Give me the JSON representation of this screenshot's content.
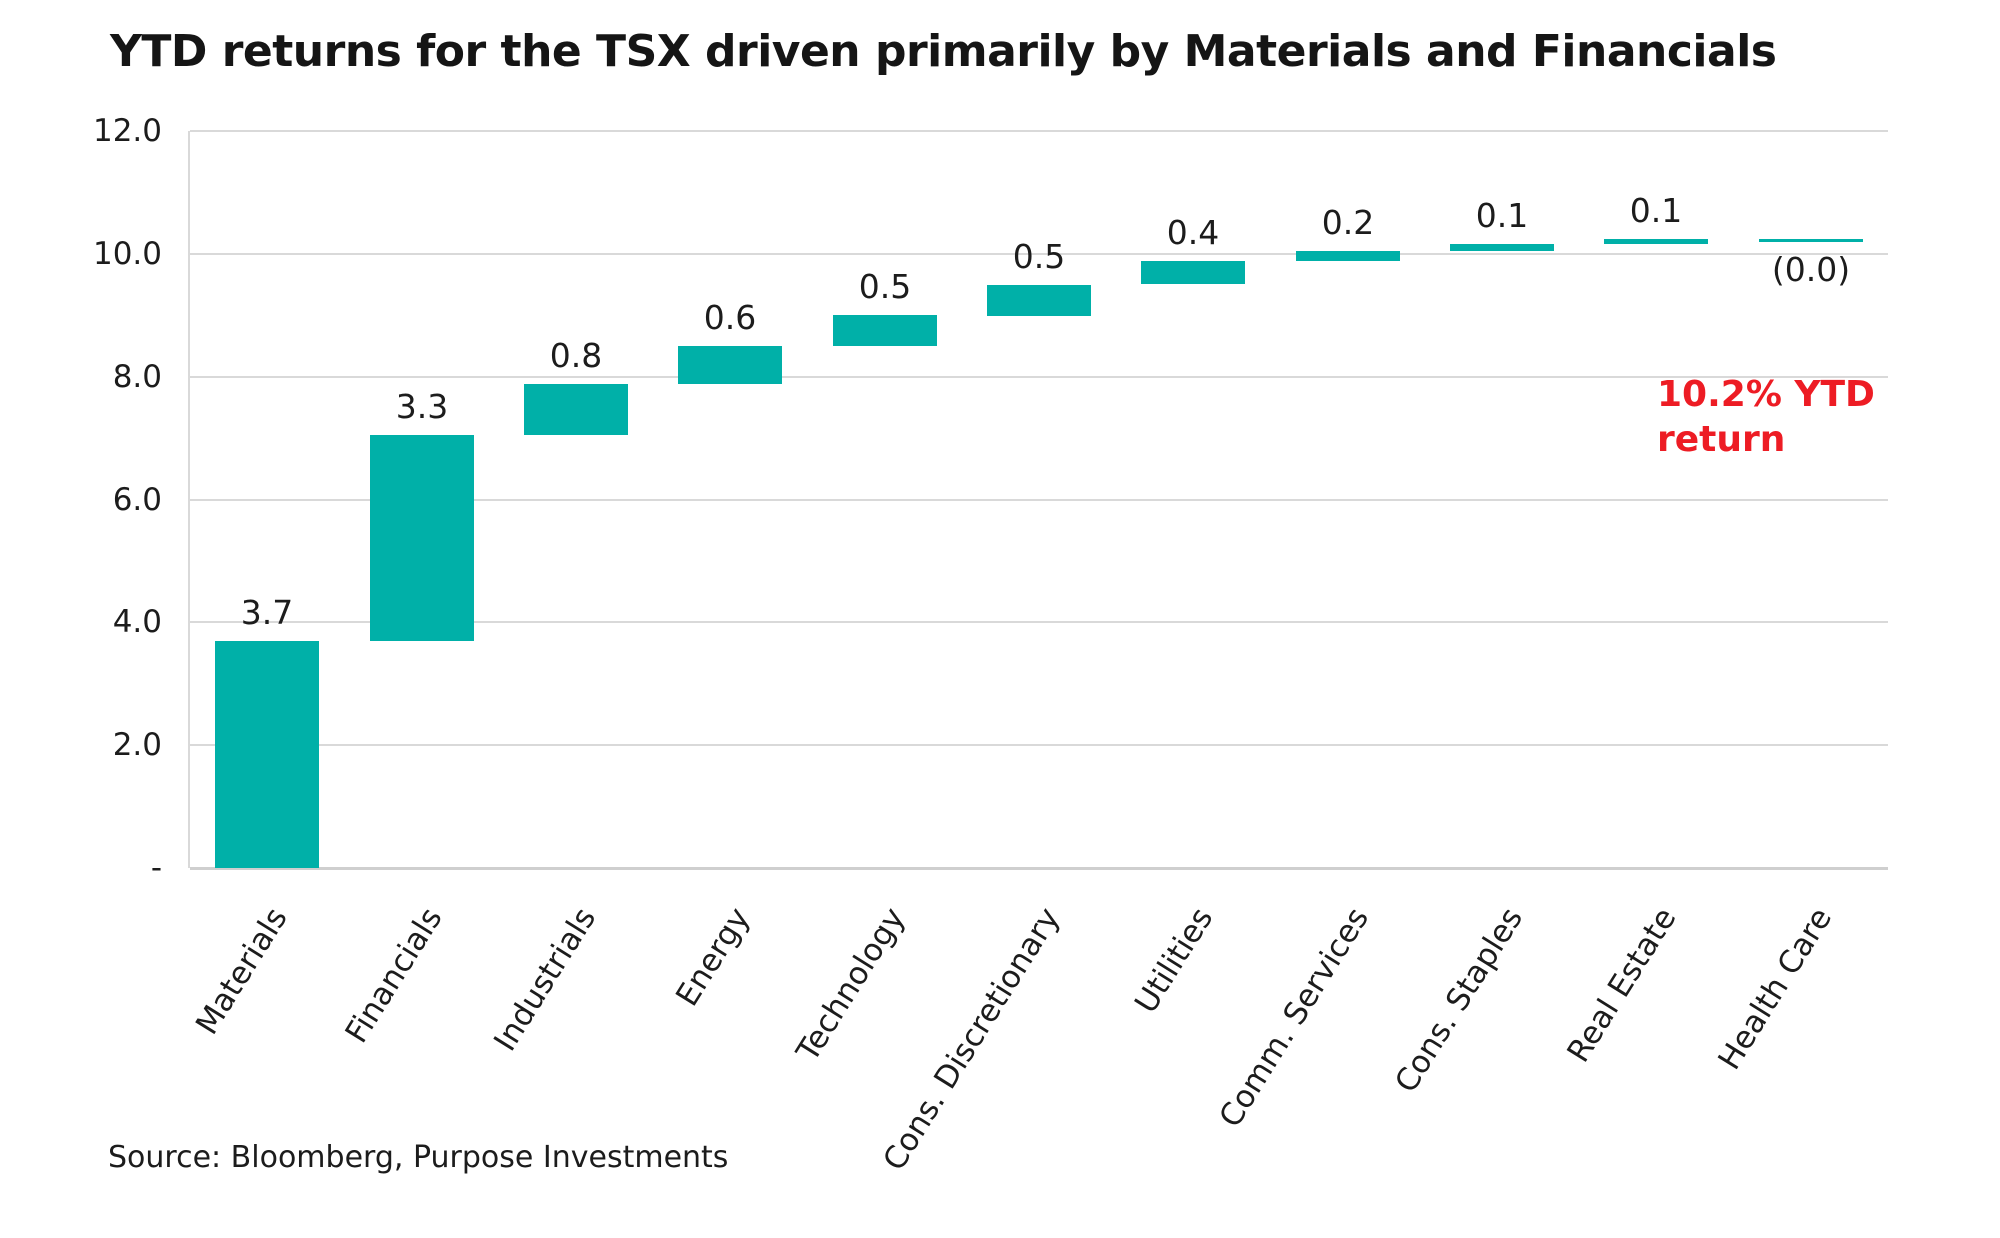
{
  "title": "YTD returns for the TSX driven primarily by Materials and Financials",
  "source": "Source: Bloomberg, Purpose Investments",
  "annotation": {
    "line1": "10.2% YTD",
    "line2": "return"
  },
  "colors": {
    "bar": "#00B0A8",
    "annotation_red": "#ED1C24",
    "gridline": "#D9D9D9",
    "text": "#1C1C1C"
  },
  "chart_data": {
    "type": "bar",
    "subtype": "waterfall",
    "title": "YTD returns for the TSX driven primarily by Materials and Financials",
    "xlabel": "",
    "ylabel": "",
    "ylim": [
      0,
      12
    ],
    "grid": true,
    "legend": false,
    "total_annotation": "10.2% YTD return",
    "categories": [
      "Materials",
      "Financials",
      "Industrials",
      "Energy",
      "Technology",
      "Cons. Discretionary",
      "Utilities",
      "Comm. Services",
      "Cons. Staples",
      "Real Estate",
      "Health Care"
    ],
    "values": [
      3.7,
      3.3,
      0.8,
      0.6,
      0.5,
      0.5,
      0.4,
      0.2,
      0.1,
      0.1,
      -0.0
    ],
    "yticks": [
      {
        "value": 12,
        "label": "12.0"
      },
      {
        "value": 10,
        "label": "10.0"
      },
      {
        "value": 8,
        "label": "8.0"
      },
      {
        "value": 6,
        "label": "6.0"
      },
      {
        "value": 4,
        "label": "4.0"
      },
      {
        "value": 2,
        "label": "2.0"
      },
      {
        "value": 0,
        "label": "-"
      }
    ],
    "items": [
      {
        "category": "Materials",
        "value": 3.7,
        "label": "3.7",
        "start": 0,
        "end": 3.7,
        "label_below": false
      },
      {
        "category": "Financials",
        "value": 3.3,
        "label": "3.3",
        "start": 3.7,
        "end": 7.05,
        "label_below": false
      },
      {
        "category": "Industrials",
        "value": 0.8,
        "label": "0.8",
        "start": 7.05,
        "end": 7.88,
        "label_below": false
      },
      {
        "category": "Energy",
        "value": 0.6,
        "label": "0.6",
        "start": 7.88,
        "end": 8.5,
        "label_below": false
      },
      {
        "category": "Technology",
        "value": 0.5,
        "label": "0.5",
        "start": 8.5,
        "end": 9.0,
        "label_below": false
      },
      {
        "category": "Cons. Discretionary",
        "value": 0.5,
        "label": "0.5",
        "start": 9.0,
        "end": 9.5,
        "label_below": false
      },
      {
        "category": "Utilities",
        "value": 0.4,
        "label": "0.4",
        "start": 9.5,
        "end": 9.88,
        "label_below": false
      },
      {
        "category": "Comm. Services",
        "value": 0.2,
        "label": "0.2",
        "start": 9.88,
        "end": 10.05,
        "label_below": false
      },
      {
        "category": "Cons. Staples",
        "value": 0.1,
        "label": "0.1",
        "start": 10.05,
        "end": 10.16,
        "label_below": false
      },
      {
        "category": "Real Estate",
        "value": 0.1,
        "label": "0.1",
        "start": 10.16,
        "end": 10.24,
        "label_below": false
      },
      {
        "category": "Health Care",
        "value": -0.0,
        "label": "(0.0)",
        "start": 10.24,
        "end": 10.21,
        "label_below": true
      }
    ]
  }
}
